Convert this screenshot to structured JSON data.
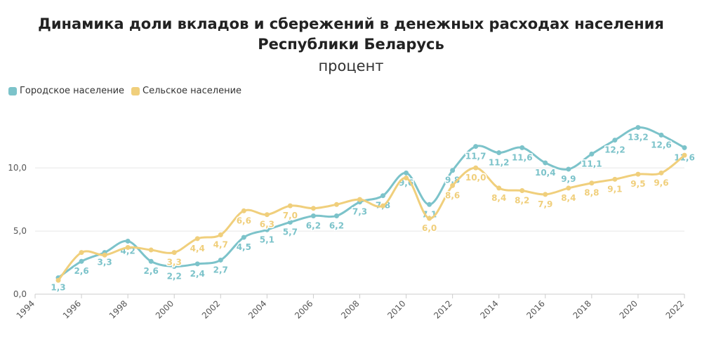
{
  "chart_data": {
    "type": "line",
    "title": "Динамика доли вкладов и сбережений в денежных расходах населения Республики Беларусь",
    "subtitle": "процент",
    "x": [
      1995,
      1996,
      1997,
      1998,
      1999,
      2000,
      2001,
      2002,
      2003,
      2004,
      2005,
      2006,
      2007,
      2008,
      2009,
      2010,
      2011,
      2012,
      2013,
      2014,
      2015,
      2016,
      2017,
      2018,
      2019,
      2020,
      2021,
      2022
    ],
    "series": [
      {
        "name": "Городское население",
        "color": "#7cc3ca",
        "values": [
          1.3,
          2.6,
          3.3,
          4.2,
          2.6,
          2.2,
          2.4,
          2.7,
          4.5,
          5.1,
          5.7,
          6.2,
          6.2,
          7.3,
          7.8,
          9.6,
          7.1,
          9.8,
          11.7,
          11.2,
          11.6,
          10.4,
          9.9,
          11.1,
          12.2,
          13.2,
          12.6,
          11.6
        ],
        "value_labels": [
          "1,3",
          "2,6",
          "3,3",
          "4,2",
          "2,6",
          "2,2",
          "2,4",
          "2,7",
          "4,5",
          "5,1",
          "5,7",
          "6,2",
          "6,2",
          "7,3",
          "7,8",
          "9,6",
          "7,1",
          "9,8",
          "11,7",
          "11,2",
          "11,6",
          "10,4",
          "9,9",
          "11,1",
          "12,2",
          "13,2",
          "12,6",
          "11,6"
        ]
      },
      {
        "name": "Сельское население",
        "color": "#f0cf7c",
        "values": [
          1.1,
          3.3,
          3.1,
          3.7,
          3.5,
          3.3,
          4.4,
          4.7,
          6.6,
          6.3,
          7.0,
          6.8,
          7.1,
          7.5,
          7.0,
          9.2,
          6.0,
          8.6,
          10.0,
          8.4,
          8.2,
          7.9,
          8.4,
          8.8,
          9.1,
          9.5,
          9.6,
          11.0
        ],
        "value_labels": [
          null,
          null,
          null,
          null,
          null,
          "3,3",
          "4,4",
          "4,7",
          "6,6",
          "6,3",
          "7,0",
          null,
          null,
          null,
          null,
          null,
          "6,0",
          "8,6",
          "10,0",
          "8,4",
          "8,2",
          "7,9",
          "8,4",
          "8,8",
          "9,1",
          "9,5",
          "9,6",
          null
        ]
      }
    ],
    "xlim": [
      1994,
      2022
    ],
    "xticks": [
      1994,
      1996,
      1998,
      2000,
      2002,
      2004,
      2006,
      2008,
      2010,
      2012,
      2014,
      2016,
      2018,
      2020,
      2022
    ],
    "ylim": [
      0,
      14.4
    ],
    "yticks": [
      {
        "value": 0,
        "label": "0,0"
      },
      {
        "value": 5,
        "label": "5,0"
      },
      {
        "value": 10,
        "label": "10,0"
      }
    ],
    "grid": true,
    "legend": "top-left"
  }
}
